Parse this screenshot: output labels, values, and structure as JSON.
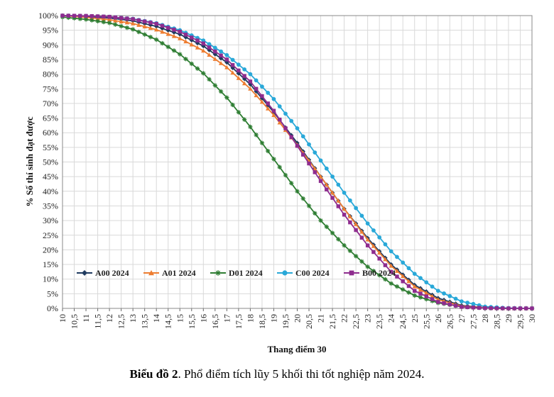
{
  "caption": {
    "bold": "Biểu đồ 2",
    "rest": ". Phổ điểm tích lũy 5 khối thi tốt nghiệp năm 2024."
  },
  "chart_data": {
    "type": "line",
    "title": "",
    "xlabel": "Thang điểm 30",
    "ylabel": "% Số thí sinh đạt được",
    "xlim": [
      10,
      30
    ],
    "ylim": [
      0,
      100
    ],
    "x_ticks": [
      "10",
      "10,5",
      "11",
      "11,5",
      "12",
      "12,5",
      "13",
      "13,5",
      "14",
      "14,5",
      "15",
      "15,5",
      "16",
      "16,5",
      "17",
      "17,5",
      "18",
      "18,5",
      "19",
      "19,5",
      "20",
      "20,5",
      "21",
      "21,5",
      "22",
      "22,5",
      "23",
      "23,5",
      "24",
      "24,5",
      "25",
      "25,5",
      "26",
      "26,5",
      "27",
      "27,5",
      "28",
      "28,5",
      "29",
      "29,5",
      "30"
    ],
    "y_ticks": [
      "0%",
      "5%",
      "10%",
      "15%",
      "20%",
      "25%",
      "30%",
      "35%",
      "40%",
      "45%",
      "50%",
      "55%",
      "60%",
      "65%",
      "70%",
      "75%",
      "80%",
      "85%",
      "90%",
      "95%",
      "100%"
    ],
    "legend_position": "bottom-left",
    "series": [
      {
        "name": "A00 2024",
        "color": "#1f3a5f",
        "marker": "diamond",
        "x": [
          10,
          11,
          12,
          13,
          14,
          15,
          16,
          17,
          18,
          19,
          20,
          21,
          22,
          23,
          24,
          25,
          26,
          27,
          28,
          29,
          30
        ],
        "y": [
          100,
          99.7,
          99.2,
          98.2,
          96.3,
          93.6,
          89.6,
          84.0,
          76.5,
          67.0,
          56.5,
          45.0,
          34.0,
          24.0,
          15.0,
          8.0,
          3.5,
          1.0,
          0.2,
          0,
          0
        ]
      },
      {
        "name": "A01 2024",
        "color": "#ed7d31",
        "marker": "triangle",
        "x": [
          10,
          11,
          12,
          13,
          14,
          15,
          16,
          17,
          18,
          19,
          20,
          21,
          22,
          23,
          24,
          25,
          26,
          27,
          28,
          29,
          30
        ],
        "y": [
          100,
          99.4,
          98.6,
          97.3,
          95.2,
          92.2,
          88.0,
          82.3,
          75.0,
          66.0,
          55.8,
          45.0,
          34.0,
          23.5,
          14.5,
          7.5,
          3.0,
          0.8,
          0.2,
          0,
          0
        ]
      },
      {
        "name": "D01 2024",
        "color": "#2e7d32",
        "marker": "star",
        "x": [
          10,
          11,
          12,
          13,
          14,
          15,
          16,
          17,
          18,
          19,
          20,
          21,
          22,
          23,
          24,
          25,
          26,
          27,
          28,
          29,
          30
        ],
        "y": [
          99.5,
          98.7,
          97.5,
          95.3,
          91.8,
          86.8,
          80.3,
          72.0,
          62.0,
          51.0,
          40.0,
          30.0,
          21.5,
          14.2,
          8.5,
          4.4,
          1.9,
          0.6,
          0.1,
          0,
          0
        ]
      },
      {
        "name": "C00 2024",
        "color": "#29a8d8",
        "marker": "circle",
        "x": [
          10,
          11,
          12,
          13,
          14,
          15,
          16,
          17,
          18,
          19,
          20,
          21,
          22,
          23,
          24,
          25,
          26,
          27,
          28,
          29,
          30
        ],
        "y": [
          100,
          99.9,
          99.6,
          98.9,
          97.4,
          95.0,
          91.5,
          86.5,
          80.0,
          71.5,
          61.5,
          50.5,
          39.5,
          29.0,
          19.5,
          11.8,
          6.0,
          2.4,
          0.6,
          0.1,
          0
        ]
      },
      {
        "name": "B00 2024",
        "color": "#8e2c8e",
        "marker": "square",
        "x": [
          10,
          11,
          12,
          13,
          14,
          15,
          16,
          17,
          18,
          19,
          20,
          21,
          22,
          23,
          24,
          25,
          26,
          27,
          28,
          29,
          30
        ],
        "y": [
          100,
          99.9,
          99.6,
          98.8,
          97.2,
          94.5,
          90.5,
          85.0,
          77.5,
          67.5,
          55.5,
          43.5,
          32.0,
          21.5,
          12.5,
          6.0,
          2.2,
          0.5,
          0.1,
          0,
          0
        ]
      }
    ]
  }
}
